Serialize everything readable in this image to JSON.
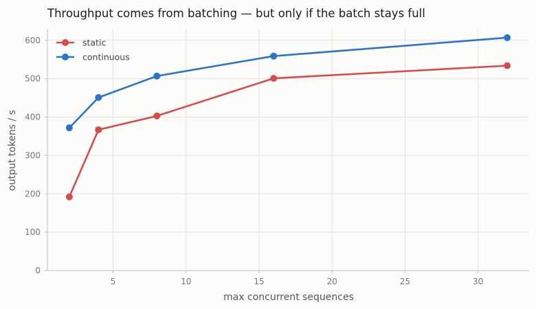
{
  "chart_data": {
    "type": "line",
    "title": "Throughput comes from batching — but only if the batch stays full",
    "xlabel": "max concurrent sequences",
    "ylabel": "output tokens / s",
    "xlim": [
      0.5,
      33.5
    ],
    "ylim": [
      0,
      630
    ],
    "xticks": [
      5,
      10,
      15,
      20,
      25,
      30
    ],
    "yticks": [
      0,
      100,
      200,
      300,
      400,
      500,
      600
    ],
    "grid": true,
    "legend_position": "top-left",
    "series": [
      {
        "name": "static",
        "color": "#d94a4a",
        "x": [
          2,
          4,
          8,
          16,
          32
        ],
        "y": [
          192,
          367,
          403,
          501,
          534
        ]
      },
      {
        "name": "continuous",
        "color": "#2b74c9",
        "x": [
          2,
          4,
          8,
          16,
          32
        ],
        "y": [
          372,
          451,
          507,
          559,
          607
        ]
      }
    ]
  }
}
